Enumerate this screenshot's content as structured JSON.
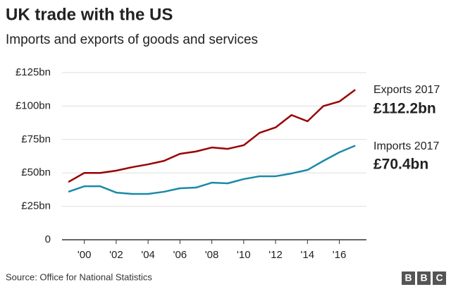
{
  "chart_data": {
    "type": "line",
    "title": "UK trade with the US",
    "subtitle": "Imports and exports of goods and services",
    "x": [
      1999,
      2000,
      2001,
      2002,
      2003,
      2004,
      2005,
      2006,
      2007,
      2008,
      2009,
      2010,
      2011,
      2012,
      2013,
      2014,
      2015,
      2016,
      2017
    ],
    "series": [
      {
        "name": "Exports",
        "color": "#990000",
        "values": [
          43.2,
          50,
          50,
          51.7,
          54.3,
          56.4,
          59,
          64.3,
          66,
          69,
          68,
          70.7,
          80,
          84,
          93.3,
          88.6,
          100,
          103.4,
          112.2
        ]
      },
      {
        "name": "Imports",
        "color": "#1a8aa8",
        "values": [
          35.9,
          40,
          40,
          35.3,
          34.3,
          34.3,
          35.9,
          38.5,
          39,
          42.7,
          42.2,
          45.4,
          47.5,
          47.5,
          49.6,
          52.2,
          59,
          65.4,
          70.4
        ]
      }
    ],
    "xlim": [
      1998.6,
      2017.7
    ],
    "xticks": [
      {
        "value": 2000,
        "label": "'00"
      },
      {
        "value": 2002,
        "label": "'02"
      },
      {
        "value": 2004,
        "label": "'04"
      },
      {
        "value": 2006,
        "label": "'06"
      },
      {
        "value": 2008,
        "label": "'08"
      },
      {
        "value": 2010,
        "label": "'10"
      },
      {
        "value": 2012,
        "label": "'12"
      },
      {
        "value": 2014,
        "label": "'14"
      },
      {
        "value": 2016,
        "label": "'16"
      }
    ],
    "ylim": [
      0,
      125
    ],
    "yticks": [
      0,
      {
        "value": 25,
        "label": "£25bn"
      },
      {
        "value": 50,
        "label": "£50bn"
      },
      {
        "value": 75,
        "label": "£75bn"
      },
      {
        "value": 100,
        "label": "£100bn"
      },
      {
        "value": 125,
        "label": "£125bn"
      }
    ],
    "grid": true,
    "annotations": [
      {
        "label": "Exports 2017",
        "value_label": "£112.2bn"
      },
      {
        "label": "Imports 2017",
        "value_label": "£70.4bn"
      }
    ],
    "source": "Source: Office for National Statistics",
    "logo": [
      "B",
      "B",
      "C"
    ]
  }
}
